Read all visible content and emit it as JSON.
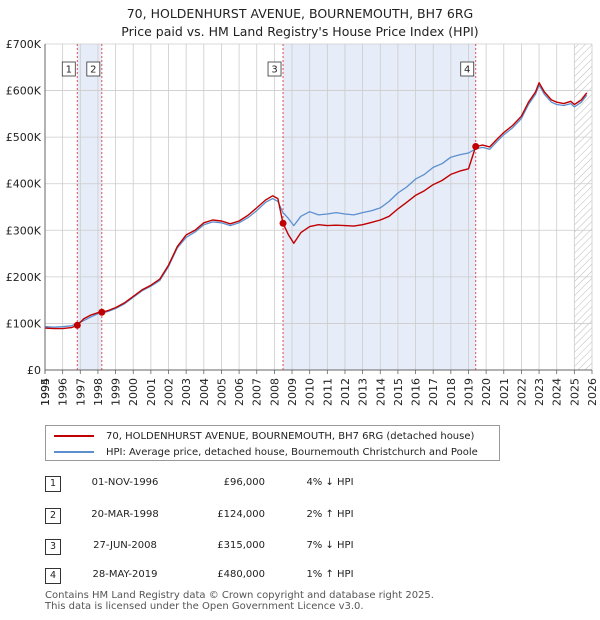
{
  "title": "70, HOLDENHURST AVENUE, BOURNEMOUTH, BH7 6RG",
  "subtitle": "Price paid vs. HM Land Registry's House Price Index (HPI)",
  "colors": {
    "property": "#c00000",
    "hpi": "#5b8fd0",
    "shade": "#e6ecf8",
    "grid": "#cccccc",
    "marker_line": "#e05050"
  },
  "legend": {
    "property": "70, HOLDENHURST AVENUE, BOURNEMOUTH, BH7 6RG (detached house)",
    "hpi": "HPI: Average price, detached house, Bournemouth Christchurch and Poole"
  },
  "transactions": [
    {
      "num": "1",
      "date": "01-NOV-1996",
      "price": "£96,000",
      "rel": "4% ↓ HPI",
      "t": 1996.83,
      "value": 96000
    },
    {
      "num": "2",
      "date": "20-MAR-1998",
      "price": "£124,000",
      "rel": "2% ↑ HPI",
      "t": 1998.22,
      "value": 124000
    },
    {
      "num": "3",
      "date": "27-JUN-2008",
      "price": "£315,000",
      "rel": "7% ↓ HPI",
      "t": 2008.49,
      "value": 315000
    },
    {
      "num": "4",
      "date": "28-MAY-2019",
      "price": "£480,000",
      "rel": "1% ↑ HPI",
      "t": 2019.41,
      "value": 480000
    }
  ],
  "footer": {
    "line1": "Contains HM Land Registry data © Crown copyright and database right 2025.",
    "line2": "This data is licensed under the Open Government Licence v3.0."
  },
  "chart_data": {
    "type": "line",
    "title": "70, HOLDENHURST AVENUE, BOURNEMOUTH, BH7 6RG",
    "xlabel": "",
    "ylabel": "",
    "xlim": [
      1995.0,
      2026.0
    ],
    "ylim": [
      0,
      700000
    ],
    "y_ticks": [
      0,
      100000,
      200000,
      300000,
      400000,
      500000,
      600000,
      700000
    ],
    "y_tick_labels": [
      "£0",
      "£100K",
      "£200K",
      "£300K",
      "£400K",
      "£500K",
      "£600K",
      "£700K"
    ],
    "x_ticks": [
      1994,
      1995,
      1996,
      1997,
      1998,
      1999,
      2000,
      2001,
      2002,
      2003,
      2004,
      2005,
      2006,
      2007,
      2008,
      2009,
      2010,
      2011,
      2012,
      2013,
      2014,
      2015,
      2016,
      2017,
      2018,
      2019,
      2020,
      2021,
      2022,
      2023,
      2024,
      2025,
      2026
    ],
    "shaded_ranges": [
      [
        1996.83,
        1998.22
      ],
      [
        2008.49,
        2019.41
      ]
    ],
    "hatched_range": [
      2025.0,
      2026.0
    ],
    "series": [
      {
        "name": "HPI: Average price, detached house, Bournemouth Christchurch and Poole",
        "key": "hpi",
        "x": [
          1995.0,
          1995.5,
          1996.0,
          1996.5,
          1996.83,
          1997.2,
          1997.6,
          1998.0,
          1998.22,
          1998.6,
          1999.0,
          1999.5,
          2000.0,
          2000.5,
          2001.0,
          2001.5,
          2002.0,
          2002.5,
          2003.0,
          2003.5,
          2004.0,
          2004.5,
          2005.0,
          2005.5,
          2006.0,
          2006.5,
          2007.0,
          2007.5,
          2007.9,
          2008.2,
          2008.49,
          2008.8,
          2009.1,
          2009.5,
          2010.0,
          2010.5,
          2011.0,
          2011.5,
          2012.0,
          2012.5,
          2013.0,
          2013.5,
          2014.0,
          2014.5,
          2015.0,
          2015.5,
          2016.0,
          2016.5,
          2017.0,
          2017.5,
          2018.0,
          2018.5,
          2019.0,
          2019.41,
          2019.8,
          2020.2,
          2020.6,
          2021.0,
          2021.5,
          2022.0,
          2022.4,
          2022.8,
          2023.0,
          2023.3,
          2023.7,
          2024.0,
          2024.4,
          2024.8,
          2025.0,
          2025.4,
          2025.7
        ],
        "values": [
          93000,
          92000,
          93000,
          95000,
          100000,
          106000,
          114000,
          121000,
          122000,
          126000,
          132000,
          142000,
          156000,
          170000,
          180000,
          192000,
          222000,
          262000,
          285000,
          296000,
          312000,
          318000,
          316000,
          310000,
          316000,
          327000,
          342000,
          360000,
          368000,
          362000,
          338000,
          325000,
          310000,
          330000,
          340000,
          333000,
          335000,
          338000,
          335000,
          333000,
          338000,
          342000,
          348000,
          362000,
          380000,
          393000,
          410000,
          420000,
          435000,
          443000,
          457000,
          462000,
          466000,
          475000,
          478000,
          474000,
          490000,
          505000,
          520000,
          540000,
          570000,
          592000,
          612000,
          592000,
          575000,
          570000,
          568000,
          572000,
          565000,
          575000,
          590000
        ]
      },
      {
        "name": "70, HOLDENHURST AVENUE, BOURNEMOUTH, BH7 6RG (detached house)",
        "key": "property",
        "x": [
          1995.0,
          1995.5,
          1996.0,
          1996.5,
          1996.83,
          1997.2,
          1997.6,
          1998.0,
          1998.22,
          1998.6,
          1999.0,
          1999.5,
          2000.0,
          2000.5,
          2001.0,
          2001.5,
          2002.0,
          2002.5,
          2003.0,
          2003.5,
          2004.0,
          2004.5,
          2005.0,
          2005.5,
          2006.0,
          2006.5,
          2007.0,
          2007.5,
          2007.9,
          2008.2,
          2008.49,
          2008.8,
          2009.1,
          2009.5,
          2010.0,
          2010.5,
          2011.0,
          2011.5,
          2012.0,
          2012.5,
          2013.0,
          2013.5,
          2014.0,
          2014.5,
          2015.0,
          2015.5,
          2016.0,
          2016.5,
          2017.0,
          2017.5,
          2018.0,
          2018.5,
          2019.0,
          2019.41,
          2019.8,
          2020.2,
          2020.6,
          2021.0,
          2021.5,
          2022.0,
          2022.4,
          2022.8,
          2023.0,
          2023.3,
          2023.7,
          2024.0,
          2024.4,
          2024.8,
          2025.0,
          2025.4,
          2025.7
        ],
        "values": [
          90000,
          89000,
          89000,
          91000,
          96000,
          110000,
          118000,
          123000,
          124000,
          128000,
          134000,
          144000,
          158000,
          172000,
          182000,
          195000,
          225000,
          265000,
          290000,
          300000,
          316000,
          322000,
          320000,
          314000,
          320000,
          332000,
          348000,
          365000,
          374000,
          368000,
          315000,
          290000,
          272000,
          295000,
          308000,
          312000,
          310000,
          311000,
          310000,
          309000,
          312000,
          317000,
          322000,
          330000,
          346000,
          360000,
          375000,
          385000,
          398000,
          407000,
          420000,
          427000,
          432000,
          480000,
          483000,
          479000,
          495000,
          510000,
          525000,
          545000,
          575000,
          597000,
          617000,
          597000,
          580000,
          575000,
          572000,
          577000,
          570000,
          580000,
          595000
        ]
      }
    ]
  }
}
